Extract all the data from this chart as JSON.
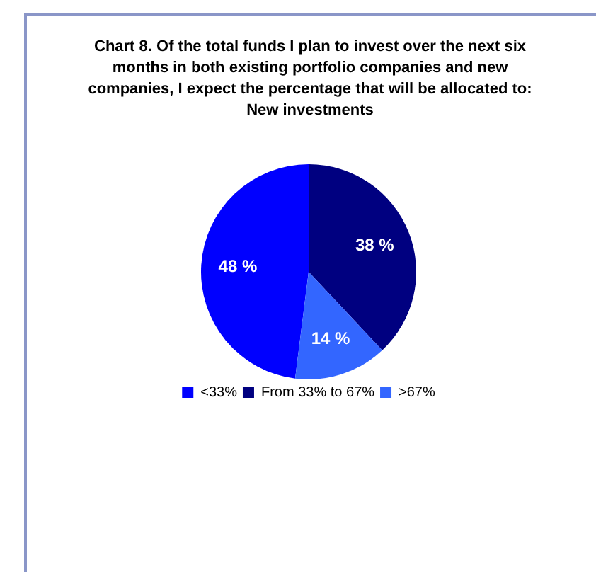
{
  "chart_data": {
    "type": "pie",
    "title": "Chart  8.  Of the total funds I plan to invest over the next six\nmonths in both existing portfolio companies and new\ncompanies, I expect the percentage that will be allocated to:\nNew investments",
    "categories": [
      "<33%",
      "From 33% to 67%",
      ">67%"
    ],
    "values": [
      48,
      38,
      14
    ],
    "colors": [
      "#0000ff",
      "#000080",
      "#3366ff"
    ],
    "value_labels": [
      "48 %",
      "38 %",
      "14 %"
    ],
    "legend": "bottom"
  }
}
